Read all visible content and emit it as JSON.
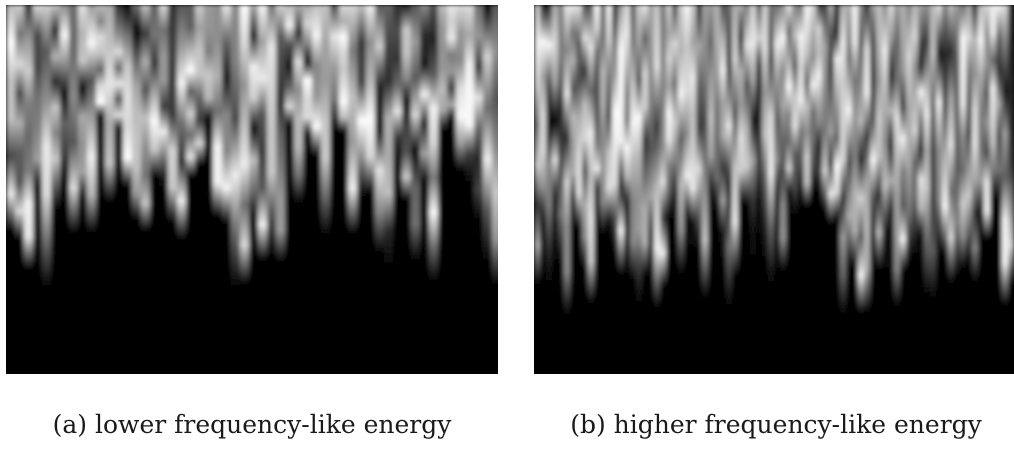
{
  "figure": {
    "panels": [
      {
        "caption": "(a) lower frequency-like energy"
      },
      {
        "caption": "(b) higher frequency-like energy"
      }
    ]
  }
}
